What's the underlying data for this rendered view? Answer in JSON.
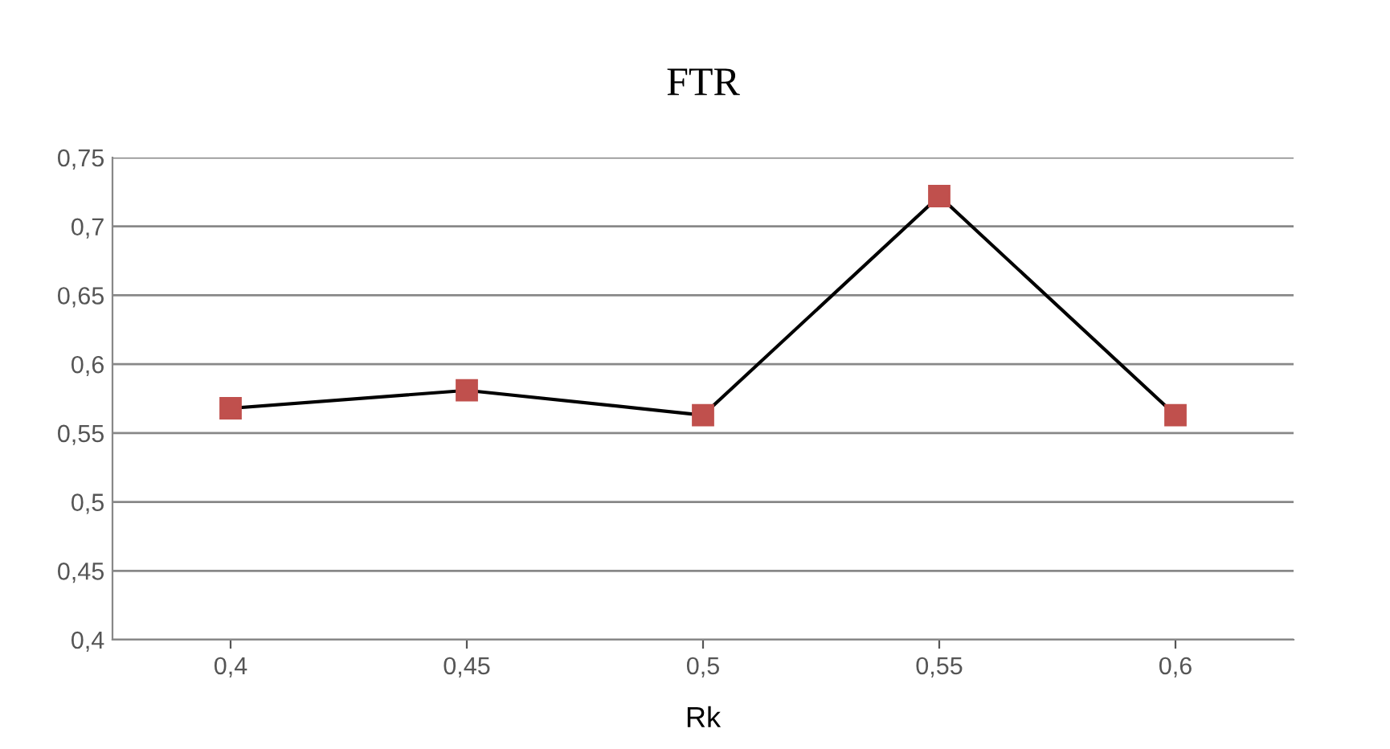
{
  "chart_data": {
    "type": "line",
    "title": "FTR",
    "xlabel": "Rk",
    "categories": [
      "0,4",
      "0,45",
      "0,5",
      "0,55",
      "0,6"
    ],
    "series": [
      {
        "color": "#c0504d",
        "values": [
          0.568,
          0.581,
          0.563,
          0.722,
          0.563
        ]
      }
    ],
    "ylim": [
      0.4,
      0.75
    ],
    "yticks": [
      {
        "value": 0.4,
        "label": "0,4"
      },
      {
        "value": 0.45,
        "label": "0,45"
      },
      {
        "value": 0.5,
        "label": "0,5"
      },
      {
        "value": 0.55,
        "label": "0,55"
      },
      {
        "value": 0.6,
        "label": "0,6"
      },
      {
        "value": 0.65,
        "label": "0,65"
      },
      {
        "value": 0.7,
        "label": "0,7"
      },
      {
        "value": 0.75,
        "label": "0,75"
      }
    ],
    "grid": "y",
    "marker": "square",
    "line_style": "solid"
  }
}
